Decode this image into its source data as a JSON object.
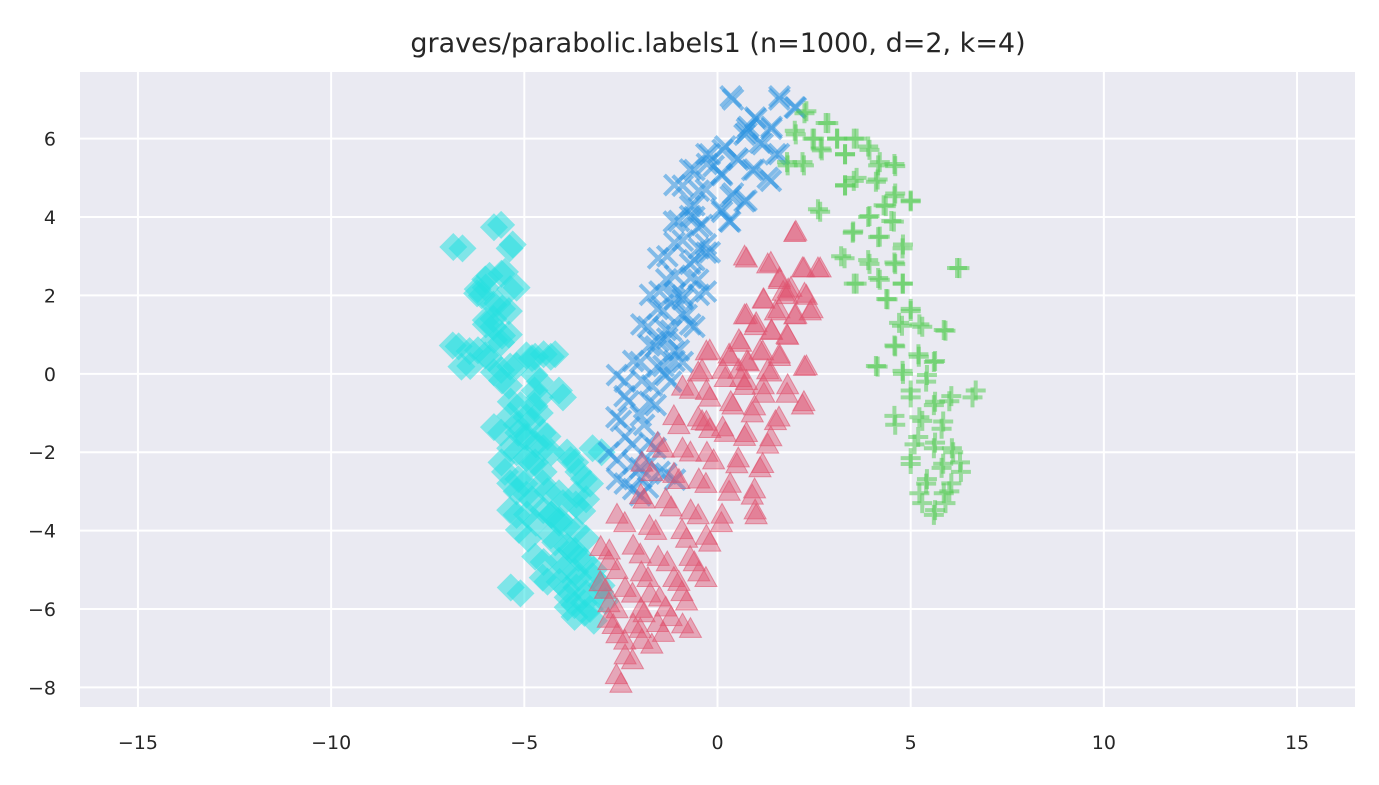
{
  "chart_data": {
    "type": "scatter",
    "title": "graves/parabolic.labels1 (n=1000, d=2, k=4)",
    "xlabel": "",
    "ylabel": "",
    "xlim": [
      -16.5,
      16.5
    ],
    "ylim": [
      -8.5,
      7.7
    ],
    "x_ticks": [
      -15,
      -10,
      -5,
      0,
      5,
      10,
      15
    ],
    "x_tick_labels": [
      "−15",
      "−10",
      "−5",
      "0",
      "5",
      "10",
      "15"
    ],
    "y_ticks": [
      -8,
      -6,
      -4,
      -2,
      0,
      2,
      4,
      6
    ],
    "y_tick_labels": [
      "−8",
      "−6",
      "−4",
      "−2",
      "0",
      "2",
      "4",
      "6"
    ],
    "grid": true,
    "legend": "none",
    "background": "#eaeaf2",
    "grid_color": "#ffffff",
    "series": [
      {
        "marker": "diamond",
        "color": "#26e0e0",
        "approx_count": 250,
        "points": [
          [
            -6.6,
            3.2
          ],
          [
            -5.6,
            3.8
          ],
          [
            -5.3,
            3.3
          ],
          [
            -5.5,
            2.6
          ],
          [
            -5.9,
            2.5
          ],
          [
            -5.2,
            2.2
          ],
          [
            -6.1,
            2.0
          ],
          [
            -5.7,
            1.8
          ],
          [
            -5.4,
            1.6
          ],
          [
            -5.8,
            1.2
          ],
          [
            -5.4,
            1.0
          ],
          [
            -5.6,
            0.8
          ],
          [
            -6.7,
            0.7
          ],
          [
            -6.2,
            0.6
          ],
          [
            -5.9,
            0.4
          ],
          [
            -6.4,
            0.2
          ],
          [
            -5.6,
            0.1
          ],
          [
            -5.2,
            0.2
          ],
          [
            -4.8,
            0.4
          ],
          [
            -4.5,
            0.5
          ],
          [
            -4.2,
            0.5
          ],
          [
            -5.4,
            -0.3
          ],
          [
            -4.6,
            -0.2
          ],
          [
            -4.0,
            -0.6
          ],
          [
            -5.1,
            -0.8
          ],
          [
            -4.6,
            -1.0
          ],
          [
            -5.2,
            -1.3
          ],
          [
            -5.6,
            -1.5
          ],
          [
            -5.0,
            -1.6
          ],
          [
            -4.7,
            -1.8
          ],
          [
            -4.4,
            -1.6
          ],
          [
            -5.2,
            -2.0
          ],
          [
            -4.8,
            -2.3
          ],
          [
            -5.5,
            -2.5
          ],
          [
            -4.5,
            -2.5
          ],
          [
            -3.8,
            -2.2
          ],
          [
            -3.6,
            -2.5
          ],
          [
            -3.0,
            -2.0
          ],
          [
            -3.3,
            -2.8
          ],
          [
            -5.2,
            -3.0
          ],
          [
            -4.8,
            -3.2
          ],
          [
            -4.4,
            -3.0
          ],
          [
            -4.0,
            -3.3
          ],
          [
            -5.2,
            -3.6
          ],
          [
            -4.7,
            -3.8
          ],
          [
            -4.3,
            -3.6
          ],
          [
            -3.9,
            -3.9
          ],
          [
            -3.5,
            -3.5
          ],
          [
            -4.9,
            -4.2
          ],
          [
            -4.2,
            -4.3
          ],
          [
            -3.8,
            -4.5
          ],
          [
            -3.4,
            -4.2
          ],
          [
            -4.5,
            -4.8
          ],
          [
            -4.0,
            -5.0
          ],
          [
            -3.6,
            -5.2
          ],
          [
            -3.2,
            -5.0
          ],
          [
            -3.9,
            -5.5
          ],
          [
            -3.4,
            -5.6
          ],
          [
            -3.0,
            -5.4
          ],
          [
            -5.1,
            -5.6
          ],
          [
            -4.4,
            -5.3
          ],
          [
            -3.7,
            -5.9
          ],
          [
            -3.3,
            -6.0
          ],
          [
            -2.9,
            -5.8
          ],
          [
            -3.7,
            -6.2
          ],
          [
            -3.2,
            -6.3
          ],
          [
            -4.8,
            -1.2
          ],
          [
            -4.3,
            -2.0
          ],
          [
            -4.1,
            -3.8
          ],
          [
            -3.6,
            -4.7
          ],
          [
            -4.6,
            -0.6
          ],
          [
            -5.8,
            1.4
          ],
          [
            -6.0,
            2.2
          ],
          [
            -5.0,
            -2.8
          ],
          [
            -3.4,
            -3.2
          ]
        ]
      },
      {
        "marker": "x",
        "color": "#2b94e0",
        "approx_count": 250,
        "points": [
          [
            0.4,
            7.0
          ],
          [
            1.6,
            7.0
          ],
          [
            2.0,
            6.8
          ],
          [
            1.0,
            6.5
          ],
          [
            1.4,
            6.3
          ],
          [
            0.7,
            6.1
          ],
          [
            0.2,
            5.8
          ],
          [
            1.1,
            5.9
          ],
          [
            -0.2,
            5.6
          ],
          [
            0.5,
            5.5
          ],
          [
            1.5,
            5.6
          ],
          [
            -0.6,
            5.2
          ],
          [
            0.1,
            5.1
          ],
          [
            0.9,
            5.2
          ],
          [
            1.3,
            5.0
          ],
          [
            -0.9,
            4.8
          ],
          [
            -0.3,
            4.7
          ],
          [
            0.4,
            4.6
          ],
          [
            -0.6,
            4.3
          ],
          [
            0.1,
            4.2
          ],
          [
            0.7,
            4.4
          ],
          [
            -1.0,
            3.9
          ],
          [
            -0.4,
            3.8
          ],
          [
            0.3,
            3.9
          ],
          [
            -0.9,
            3.4
          ],
          [
            -0.3,
            3.3
          ],
          [
            -1.3,
            3.0
          ],
          [
            -0.6,
            2.9
          ],
          [
            -0.2,
            3.1
          ],
          [
            -1.1,
            2.5
          ],
          [
            -0.5,
            2.4
          ],
          [
            -1.5,
            2.1
          ],
          [
            -0.9,
            2.0
          ],
          [
            -0.3,
            2.1
          ],
          [
            -1.4,
            1.6
          ],
          [
            -0.8,
            1.5
          ],
          [
            -1.8,
            1.2
          ],
          [
            -1.2,
            1.1
          ],
          [
            -0.6,
            1.2
          ],
          [
            -1.6,
            0.7
          ],
          [
            -1.0,
            0.6
          ],
          [
            -2.0,
            0.3
          ],
          [
            -1.4,
            0.2
          ],
          [
            -0.9,
            0.3
          ],
          [
            -2.4,
            -0.2
          ],
          [
            -1.7,
            -0.3
          ],
          [
            -1.2,
            -0.2
          ],
          [
            -2.3,
            -0.7
          ],
          [
            -1.6,
            -0.8
          ],
          [
            -2.5,
            -1.2
          ],
          [
            -1.9,
            -1.3
          ],
          [
            -2.2,
            -1.8
          ],
          [
            -1.6,
            -1.9
          ],
          [
            -2.6,
            -2.2
          ],
          [
            -2.0,
            -2.4
          ],
          [
            -1.5,
            -2.5
          ],
          [
            -2.4,
            -2.8
          ],
          [
            -1.8,
            -2.9
          ],
          [
            -1.1,
            -2.7
          ],
          [
            -2.0,
            -3.1
          ],
          [
            -0.9,
            1.9
          ],
          [
            -0.1,
            5.3
          ],
          [
            0.8,
            6.3
          ],
          [
            -1.3,
            0.9
          ],
          [
            -0.6,
            4.0
          ]
        ]
      },
      {
        "marker": "plus",
        "color": "#55cc55",
        "approx_count": 250,
        "points": [
          [
            2.3,
            6.7
          ],
          [
            2.8,
            6.4
          ],
          [
            2.0,
            6.2
          ],
          [
            2.5,
            6.0
          ],
          [
            3.1,
            6.0
          ],
          [
            3.6,
            6.0
          ],
          [
            3.9,
            5.8
          ],
          [
            2.7,
            5.7
          ],
          [
            3.3,
            5.6
          ],
          [
            4.2,
            5.4
          ],
          [
            1.8,
            5.4
          ],
          [
            2.2,
            5.4
          ],
          [
            4.6,
            5.3
          ],
          [
            3.6,
            5.0
          ],
          [
            4.1,
            4.9
          ],
          [
            4.6,
            4.6
          ],
          [
            3.3,
            4.8
          ],
          [
            4.3,
            4.3
          ],
          [
            5.0,
            4.4
          ],
          [
            2.6,
            4.2
          ],
          [
            3.9,
            4.0
          ],
          [
            4.5,
            3.9
          ],
          [
            3.5,
            3.6
          ],
          [
            4.2,
            3.5
          ],
          [
            4.8,
            3.3
          ],
          [
            3.2,
            3.0
          ],
          [
            3.9,
            2.9
          ],
          [
            4.6,
            2.8
          ],
          [
            6.2,
            2.7
          ],
          [
            4.2,
            2.4
          ],
          [
            4.8,
            2.3
          ],
          [
            3.6,
            2.3
          ],
          [
            4.4,
            1.9
          ],
          [
            5.0,
            1.6
          ],
          [
            4.7,
            1.3
          ],
          [
            5.3,
            1.2
          ],
          [
            5.9,
            1.1
          ],
          [
            4.6,
            0.7
          ],
          [
            5.2,
            0.5
          ],
          [
            5.6,
            0.3
          ],
          [
            4.1,
            0.2
          ],
          [
            4.8,
            0.0
          ],
          [
            5.4,
            -0.2
          ],
          [
            6.6,
            -0.6
          ],
          [
            5.0,
            -0.6
          ],
          [
            5.6,
            -0.8
          ],
          [
            6.0,
            -0.7
          ],
          [
            4.6,
            -1.3
          ],
          [
            5.3,
            -1.2
          ],
          [
            5.8,
            -1.4
          ],
          [
            5.1,
            -1.8
          ],
          [
            5.6,
            -1.9
          ],
          [
            6.1,
            -2.0
          ],
          [
            5.0,
            -2.3
          ],
          [
            5.8,
            -2.4
          ],
          [
            6.3,
            -2.5
          ],
          [
            5.4,
            -2.8
          ],
          [
            6.0,
            -3.0
          ],
          [
            5.3,
            -3.3
          ],
          [
            5.9,
            -3.3
          ],
          [
            5.6,
            -3.6
          ]
        ]
      },
      {
        "marker": "triangle",
        "color": "#e05570",
        "approx_count": 250,
        "points": [
          [
            2.0,
            3.6
          ],
          [
            0.7,
            3.0
          ],
          [
            1.3,
            2.8
          ],
          [
            2.2,
            2.7
          ],
          [
            2.6,
            2.7
          ],
          [
            1.6,
            2.4
          ],
          [
            1.9,
            2.2
          ],
          [
            2.3,
            2.0
          ],
          [
            1.2,
            1.9
          ],
          [
            1.5,
            1.6
          ],
          [
            2.0,
            1.5
          ],
          [
            2.4,
            1.6
          ],
          [
            0.7,
            1.5
          ],
          [
            1.0,
            1.3
          ],
          [
            1.4,
            1.1
          ],
          [
            1.8,
            1.0
          ],
          [
            0.6,
            0.8
          ],
          [
            1.1,
            0.6
          ],
          [
            1.6,
            0.5
          ],
          [
            -0.2,
            0.6
          ],
          [
            0.3,
            0.5
          ],
          [
            0.8,
            0.3
          ],
          [
            1.3,
            0.1
          ],
          [
            2.3,
            0.2
          ],
          [
            -0.4,
            0.1
          ],
          [
            0.2,
            -0.1
          ],
          [
            0.7,
            -0.3
          ],
          [
            1.2,
            -0.5
          ],
          [
            1.8,
            -0.5
          ],
          [
            2.2,
            -0.8
          ],
          [
            -0.7,
            -0.4
          ],
          [
            -0.2,
            -0.6
          ],
          [
            0.4,
            -0.8
          ],
          [
            0.9,
            -1.0
          ],
          [
            1.5,
            -1.2
          ],
          [
            -1.0,
            -1.3
          ],
          [
            -0.4,
            -1.2
          ],
          [
            0.2,
            -1.5
          ],
          [
            0.7,
            -1.6
          ],
          [
            1.3,
            -1.8
          ],
          [
            -1.4,
            -1.9
          ],
          [
            -0.7,
            -2.0
          ],
          [
            -0.1,
            -2.2
          ],
          [
            0.5,
            -2.3
          ],
          [
            1.1,
            -2.4
          ],
          [
            -1.7,
            -2.5
          ],
          [
            -1.0,
            -2.7
          ],
          [
            -0.3,
            -2.8
          ],
          [
            0.3,
            -3.0
          ],
          [
            0.9,
            -3.1
          ],
          [
            -1.9,
            -3.2
          ],
          [
            -1.2,
            -3.4
          ],
          [
            -0.5,
            -3.6
          ],
          [
            0.1,
            -3.8
          ],
          [
            1.0,
            -3.6
          ],
          [
            -2.4,
            -3.8
          ],
          [
            -1.6,
            -4.0
          ],
          [
            -0.8,
            -4.2
          ],
          [
            -0.2,
            -4.3
          ],
          [
            -2.8,
            -4.5
          ],
          [
            -2.0,
            -4.6
          ],
          [
            -1.3,
            -4.8
          ],
          [
            -0.6,
            -4.8
          ],
          [
            -2.6,
            -5.0
          ],
          [
            -1.8,
            -5.2
          ],
          [
            -1.0,
            -5.3
          ],
          [
            -0.3,
            -5.2
          ],
          [
            -2.9,
            -5.5
          ],
          [
            -2.2,
            -5.6
          ],
          [
            -1.5,
            -5.7
          ],
          [
            -0.8,
            -5.8
          ],
          [
            -2.6,
            -6.0
          ],
          [
            -1.9,
            -6.1
          ],
          [
            -1.2,
            -6.2
          ],
          [
            -2.7,
            -6.4
          ],
          [
            -2.0,
            -6.5
          ],
          [
            -1.4,
            -6.6
          ],
          [
            -0.7,
            -6.5
          ],
          [
            -2.4,
            -6.8
          ],
          [
            -1.7,
            -6.9
          ],
          [
            -2.2,
            -7.3
          ],
          [
            -2.5,
            -7.9
          ],
          [
            -0.2,
            -1.4
          ],
          [
            0.6,
            -0.1
          ],
          [
            1.7,
            2.1
          ]
        ]
      }
    ]
  }
}
